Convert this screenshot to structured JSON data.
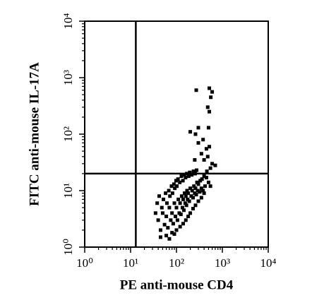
{
  "chart_data": {
    "type": "scatter",
    "xlabel": "PE anti-mouse CD4",
    "ylabel": "FITC anti-mouse IL-17A",
    "xscale": "log",
    "yscale": "log",
    "log_minor_ticks": true,
    "xlim": [
      1,
      10000
    ],
    "ylim": [
      1,
      10000
    ],
    "xticks": [
      {
        "value": 1,
        "label": "10⁰"
      },
      {
        "value": 10,
        "label": "10¹"
      },
      {
        "value": 100,
        "label": "10²"
      },
      {
        "value": 1000,
        "label": "10³"
      },
      {
        "value": 10000,
        "label": "10⁴"
      }
    ],
    "yticks": [
      {
        "value": 1,
        "label": "10⁰"
      },
      {
        "value": 10,
        "label": "10¹"
      },
      {
        "value": 100,
        "label": "10²"
      },
      {
        "value": 1000,
        "label": "10³"
      },
      {
        "value": 10000,
        "label": "10⁴"
      }
    ],
    "quadrant_x": 13,
    "quadrant_y": 20,
    "color": "#000000",
    "x": [
      270,
      520,
      600,
      560,
      480,
      520,
      300,
      200,
      260,
      500,
      380,
      300,
      450,
      520,
      350,
      400,
      480,
      250,
      600,
      700,
      550,
      460,
      40,
      50,
      60,
      70,
      80,
      90,
      100,
      110,
      120,
      130,
      140,
      150,
      160,
      170,
      180,
      200,
      220,
      240,
      260,
      280,
      300,
      330,
      360,
      400,
      450,
      500,
      550,
      45,
      55,
      65,
      75,
      85,
      95,
      105,
      115,
      125,
      135,
      145,
      155,
      165,
      175,
      190,
      210,
      230,
      250,
      270,
      290,
      320,
      350,
      380,
      420,
      35,
      38,
      42,
      48,
      52,
      58,
      62,
      68,
      72,
      78,
      82,
      88,
      92,
      98,
      102,
      108,
      118,
      128,
      138,
      148,
      158,
      168,
      185,
      195,
      215,
      235,
      255,
      275,
      60,
      80,
      100,
      120,
      140,
      160,
      180,
      200,
      230,
      260,
      300,
      350,
      400,
      45,
      70,
      90
    ],
    "values": [
      600,
      650,
      560,
      450,
      300,
      250,
      130,
      110,
      100,
      130,
      80,
      70,
      55,
      60,
      45,
      35,
      40,
      35,
      30,
      28,
      25,
      22,
      3,
      4,
      3.5,
      5,
      4,
      6,
      5,
      7,
      6,
      8,
      7,
      9,
      8,
      10,
      9,
      11,
      10,
      12,
      11,
      14,
      13,
      15,
      16,
      18,
      17,
      14,
      12,
      2,
      2.5,
      2.2,
      3,
      2.6,
      3.5,
      3,
      4,
      3.8,
      5,
      4.5,
      6,
      5.5,
      7,
      6.5,
      8,
      7.5,
      9,
      8.5,
      10,
      9.5,
      11,
      10,
      12,
      4,
      6,
      8,
      5,
      7,
      9,
      6,
      10,
      8,
      12,
      9,
      13,
      11,
      15,
      12,
      16,
      14,
      18,
      15,
      19,
      17,
      20,
      18,
      21,
      19,
      22,
      20,
      23,
      1.6,
      1.8,
      2,
      2.3,
      2.6,
      3,
      3.5,
      4,
      4.8,
      5.5,
      6.5,
      7.5,
      9,
      1.5,
      1.4,
      1.7
    ]
  }
}
